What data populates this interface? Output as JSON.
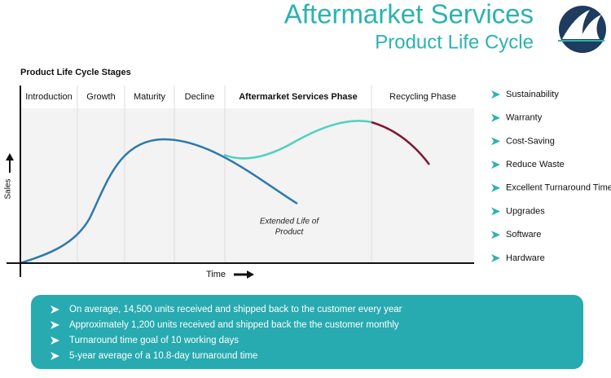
{
  "header": {
    "title": "Aftermarket Services",
    "subtitle": "Product Life Cycle"
  },
  "stages_title": "Product Life Cycle Stages",
  "stages": [
    "Introduction",
    "Growth",
    "Maturity",
    "Decline",
    "Aftermarket Services Phase",
    "Recycling Phase"
  ],
  "axes": {
    "y": "Sales",
    "x": "Time"
  },
  "curve_label": [
    "Extended Life of",
    "Product"
  ],
  "benefits": [
    "Sustainability",
    "Warranty",
    "Cost-Saving",
    "Reduce Waste",
    "Excellent Turnaround Time",
    "Upgrades",
    "Software",
    "Hardware"
  ],
  "facts": [
    "On average, 14,500 units received and shipped back to the customer every year",
    "Approximately 1,200 units received and shipped back the the customer monthly",
    "Turnaround time goal of 10 working days",
    "5-year average of a 10.8-day turnaround time"
  ]
}
